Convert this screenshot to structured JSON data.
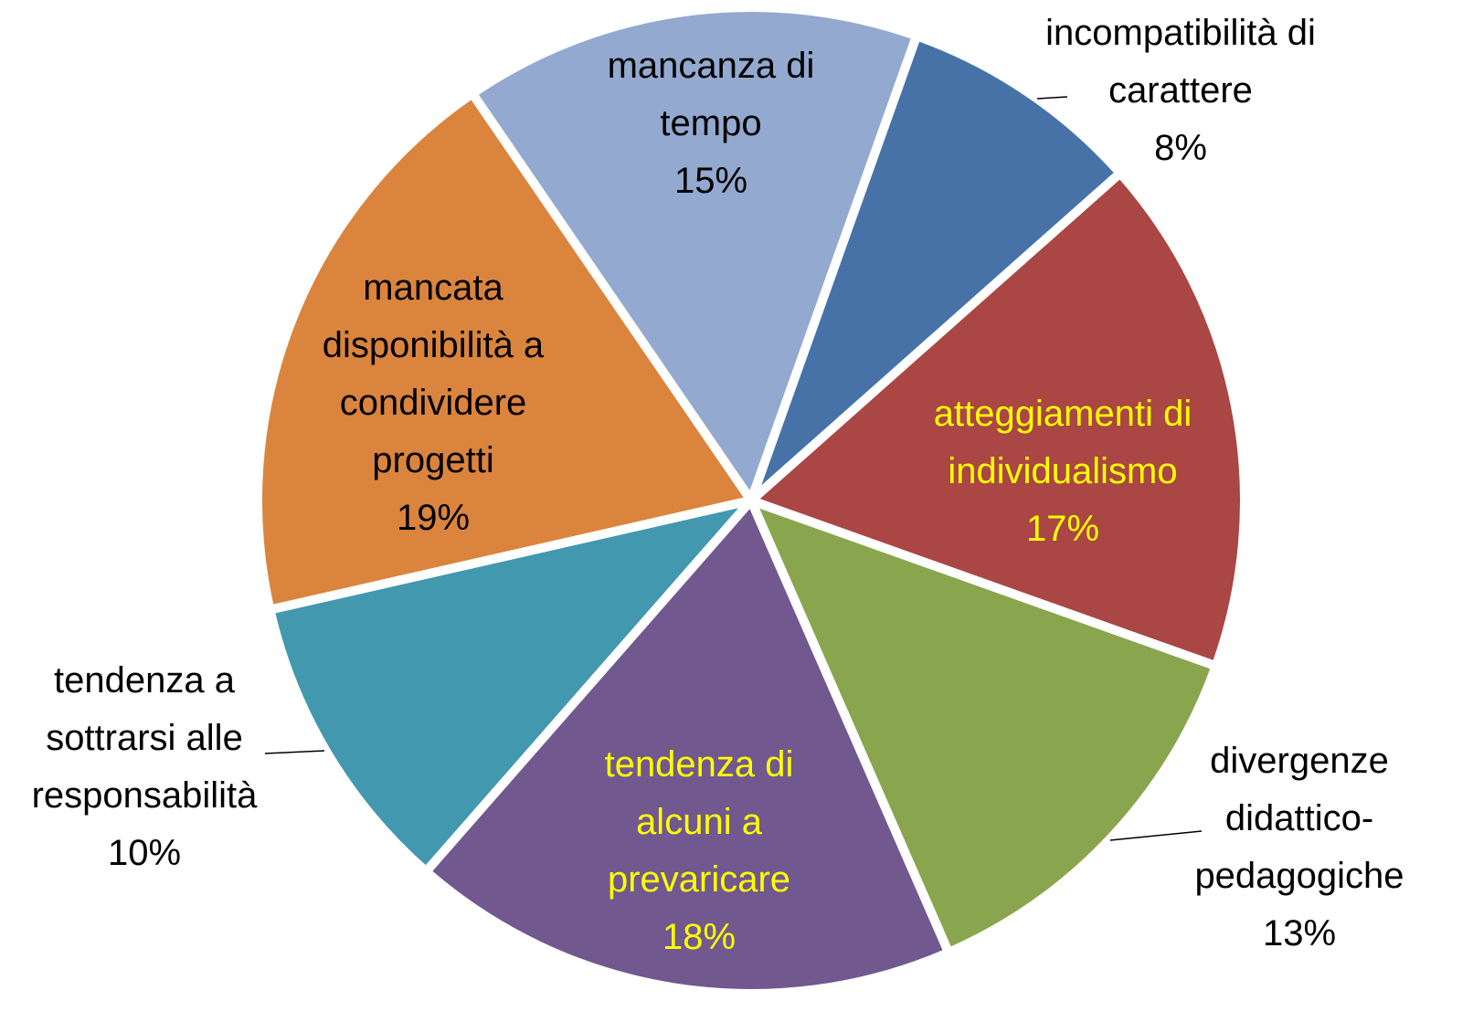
{
  "chart_data": {
    "type": "pie",
    "categories": [
      "incompatibilità di carattere",
      "atteggiamenti di individualismo",
      "divergenze didattico-pedagogiche",
      "tendenza di alcuni a prevaricare",
      "tendenza a sottrarsi alle responsabilità",
      "mancata disponibilità a condividere progetti",
      "mancanza di tempo"
    ],
    "values": [
      8,
      17,
      13,
      18,
      10,
      19,
      15
    ],
    "value_labels": [
      "8%",
      "17%",
      "13%",
      "18%",
      "10%",
      "19%",
      "15%"
    ],
    "colors": [
      "#4672a8",
      "#aa4644",
      "#89a54e",
      "#71588f",
      "#4298af",
      "#db843d",
      "#93a9cf"
    ],
    "label_colors": [
      "#000000",
      "#ffff00",
      "#000000",
      "#ffff00",
      "#000000",
      "#000000",
      "#000000"
    ]
  }
}
